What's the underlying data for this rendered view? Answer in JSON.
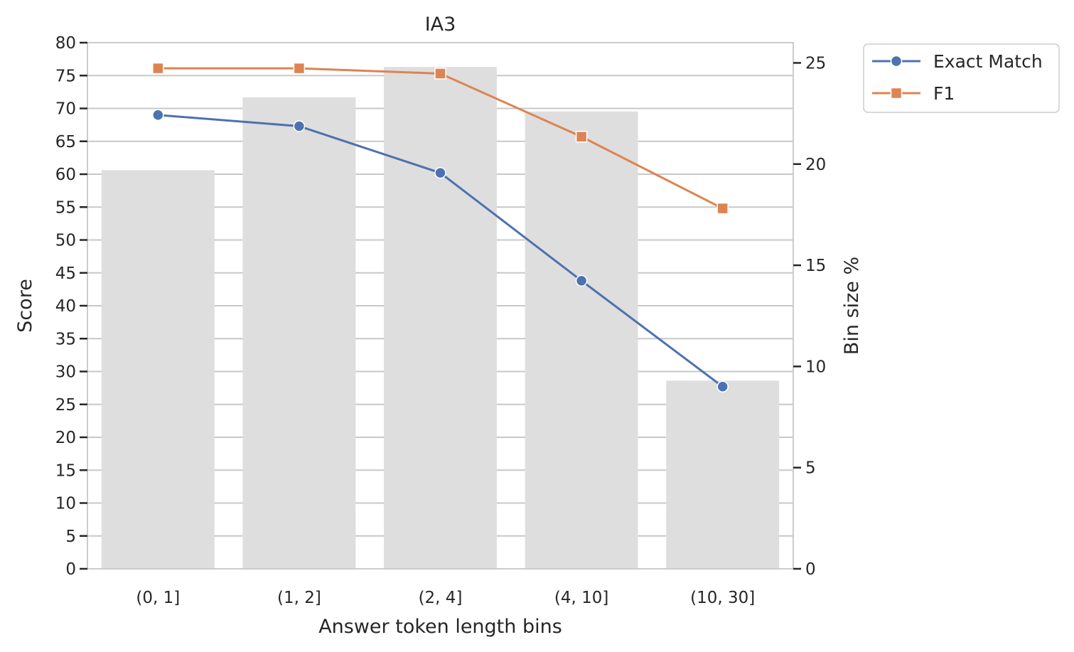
{
  "chart_data": {
    "type": "bar+line",
    "title": "IA3",
    "xlabel": "Answer token length bins",
    "ylabel": "Score",
    "y2label": "Bin size %",
    "categories": [
      "(0, 1]",
      "(1, 2]",
      "(2, 4]",
      "(4, 10]",
      "(10, 30]"
    ],
    "ylim": [
      0,
      80
    ],
    "y_ticks": [
      0,
      5,
      10,
      15,
      20,
      25,
      30,
      35,
      40,
      45,
      50,
      55,
      60,
      65,
      70,
      75,
      80
    ],
    "y2lim": [
      0,
      26
    ],
    "y2_ticks": [
      0,
      5,
      10,
      15,
      20,
      25
    ],
    "grid": true,
    "legend_position": "outside-top-right",
    "bars": {
      "axis": "right",
      "values": [
        19.7,
        23.3,
        24.8,
        22.6,
        9.3
      ],
      "color": "#dedede"
    },
    "series": [
      {
        "name": "Exact Match",
        "marker": "circle",
        "color": "#4c72b0",
        "axis": "left",
        "values": [
          69.0,
          67.3,
          60.2,
          43.8,
          27.7
        ]
      },
      {
        "name": "F1",
        "marker": "square",
        "color": "#dd8452",
        "axis": "left",
        "values": [
          76.1,
          76.1,
          75.3,
          65.7,
          54.8
        ]
      }
    ]
  }
}
